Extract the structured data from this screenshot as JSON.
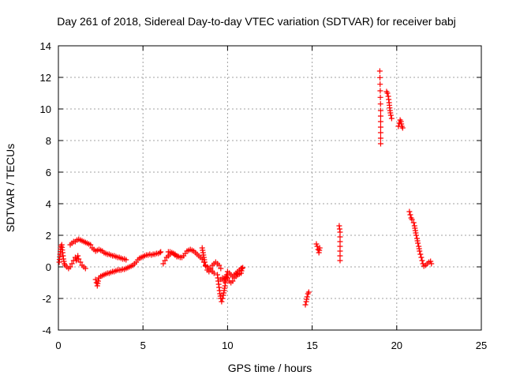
{
  "chart_data": {
    "type": "scatter",
    "title": "Day 261 of 2018, Sidereal Day-to-day VTEC variation (SDTVAR) for receiver babj",
    "xlabel": "GPS time / hours",
    "ylabel": "SDTVAR / TECUs",
    "xlim": [
      0,
      25
    ],
    "ylim": [
      -4,
      14
    ],
    "xticks": [
      0,
      5,
      10,
      15,
      20,
      25
    ],
    "yticks": [
      -4,
      -2,
      0,
      2,
      4,
      6,
      8,
      10,
      12,
      14
    ],
    "grid": true,
    "marker": "+",
    "color": "#ff0000",
    "series": [
      {
        "name": "babj",
        "tracks": [
          [
            [
              0.05,
              0.3
            ],
            [
              0.1,
              0.8
            ],
            [
              0.15,
              1.3
            ],
            [
              0.2,
              1.4
            ],
            [
              0.25,
              0.9
            ],
            [
              0.3,
              0.5
            ],
            [
              0.35,
              0.2
            ],
            [
              0.4,
              0.1
            ],
            [
              0.5,
              0.0
            ],
            [
              0.6,
              -0.1
            ],
            [
              0.7,
              0.0
            ],
            [
              0.8,
              0.2
            ],
            [
              0.9,
              0.4
            ],
            [
              1.0,
              0.6
            ],
            [
              1.05,
              0.4
            ],
            [
              1.1,
              0.5
            ],
            [
              1.15,
              0.7
            ],
            [
              1.2,
              0.5
            ],
            [
              1.3,
              0.3
            ],
            [
              1.4,
              0.1
            ],
            [
              1.5,
              0.0
            ],
            [
              1.6,
              -0.1
            ]
          ],
          [
            [
              0.7,
              1.4
            ],
            [
              0.8,
              1.5
            ],
            [
              0.9,
              1.6
            ],
            [
              1.0,
              1.6
            ],
            [
              1.1,
              1.7
            ],
            [
              1.2,
              1.75
            ],
            [
              1.3,
              1.7
            ],
            [
              1.4,
              1.65
            ],
            [
              1.5,
              1.6
            ],
            [
              1.6,
              1.55
            ],
            [
              1.7,
              1.5
            ],
            [
              1.8,
              1.45
            ],
            [
              1.9,
              1.4
            ],
            [
              2.0,
              1.2
            ],
            [
              2.1,
              1.1
            ],
            [
              2.2,
              1.0
            ],
            [
              2.3,
              1.05
            ],
            [
              2.4,
              1.1
            ],
            [
              2.5,
              1.05
            ],
            [
              2.6,
              1.0
            ],
            [
              2.7,
              0.9
            ],
            [
              2.8,
              0.85
            ],
            [
              2.9,
              0.8
            ],
            [
              3.0,
              0.8
            ],
            [
              3.1,
              0.75
            ],
            [
              3.2,
              0.7
            ],
            [
              3.3,
              0.7
            ],
            [
              3.4,
              0.65
            ],
            [
              3.5,
              0.6
            ],
            [
              3.6,
              0.6
            ],
            [
              3.7,
              0.55
            ],
            [
              3.8,
              0.5
            ],
            [
              3.9,
              0.5
            ],
            [
              4.0,
              0.45
            ]
          ],
          [
            [
              2.2,
              -0.8
            ],
            [
              2.25,
              -1.0
            ],
            [
              2.3,
              -1.2
            ],
            [
              2.35,
              -0.9
            ],
            [
              2.4,
              -0.7
            ],
            [
              2.5,
              -0.6
            ],
            [
              2.6,
              -0.55
            ],
            [
              2.7,
              -0.5
            ],
            [
              2.8,
              -0.45
            ],
            [
              2.9,
              -0.4
            ],
            [
              3.0,
              -0.4
            ],
            [
              3.1,
              -0.35
            ],
            [
              3.2,
              -0.3
            ],
            [
              3.3,
              -0.3
            ],
            [
              3.4,
              -0.25
            ],
            [
              3.5,
              -0.2
            ],
            [
              3.6,
              -0.2
            ],
            [
              3.7,
              -0.2
            ],
            [
              3.8,
              -0.15
            ],
            [
              3.9,
              -0.15
            ],
            [
              4.0,
              -0.1
            ],
            [
              4.1,
              -0.05
            ],
            [
              4.2,
              0.0
            ],
            [
              4.3,
              0.05
            ],
            [
              4.4,
              0.1
            ],
            [
              4.5,
              0.2
            ],
            [
              4.6,
              0.3
            ],
            [
              4.7,
              0.45
            ],
            [
              4.8,
              0.55
            ],
            [
              4.9,
              0.6
            ],
            [
              5.0,
              0.65
            ],
            [
              5.1,
              0.7
            ],
            [
              5.2,
              0.75
            ],
            [
              5.3,
              0.75
            ],
            [
              5.4,
              0.8
            ],
            [
              5.5,
              0.75
            ],
            [
              5.6,
              0.8
            ],
            [
              5.7,
              0.8
            ],
            [
              5.8,
              0.85
            ],
            [
              5.9,
              0.85
            ],
            [
              6.0,
              0.9
            ],
            [
              6.05,
              0.95
            ]
          ],
          [
            [
              6.2,
              0.2
            ],
            [
              6.3,
              0.4
            ],
            [
              6.4,
              0.6
            ],
            [
              6.5,
              0.7
            ],
            [
              6.6,
              0.8
            ],
            [
              6.7,
              0.9
            ],
            [
              6.8,
              0.85
            ],
            [
              6.9,
              0.8
            ],
            [
              7.0,
              0.7
            ],
            [
              7.1,
              0.65
            ],
            [
              7.2,
              0.6
            ],
            [
              7.3,
              0.6
            ],
            [
              7.4,
              0.7
            ],
            [
              7.5,
              0.85
            ],
            [
              7.6,
              1.0
            ],
            [
              7.7,
              1.05
            ],
            [
              7.8,
              1.1
            ],
            [
              7.9,
              1.05
            ],
            [
              8.0,
              1.0
            ],
            [
              8.1,
              0.9
            ],
            [
              8.2,
              0.8
            ],
            [
              8.3,
              0.7
            ],
            [
              8.4,
              0.6
            ],
            [
              8.5,
              0.5
            ],
            [
              8.6,
              0.3
            ],
            [
              8.7,
              0.1
            ],
            [
              8.8,
              0.0
            ],
            [
              8.9,
              -0.1
            ],
            [
              9.0,
              -0.2
            ],
            [
              9.1,
              -0.3
            ],
            [
              9.2,
              -0.4
            ]
          ],
          [
            [
              6.5,
              0.95
            ],
            [
              6.6,
              0.95
            ],
            [
              6.7,
              0.9
            ],
            [
              6.8,
              0.85
            ],
            [
              6.9,
              0.75
            ],
            [
              7.0,
              0.65
            ]
          ],
          [
            [
              8.5,
              1.2
            ],
            [
              8.55,
              0.9
            ],
            [
              8.6,
              0.6
            ],
            [
              8.65,
              0.3
            ],
            [
              8.7,
              0.05
            ],
            [
              8.8,
              -0.2
            ],
            [
              8.9,
              -0.3
            ],
            [
              9.0,
              -0.1
            ],
            [
              9.1,
              0.1
            ],
            [
              9.2,
              0.2
            ],
            [
              9.3,
              0.3
            ],
            [
              9.4,
              0.2
            ],
            [
              9.5,
              0.1
            ],
            [
              9.6,
              -0.1
            ]
          ],
          [
            [
              9.4,
              -0.5
            ],
            [
              9.45,
              -0.9
            ],
            [
              9.5,
              -1.3
            ],
            [
              9.55,
              -1.7
            ],
            [
              9.6,
              -2.0
            ],
            [
              9.65,
              -2.2
            ],
            [
              9.7,
              -2.0
            ],
            [
              9.75,
              -1.8
            ],
            [
              9.8,
              -1.5
            ],
            [
              9.85,
              -1.2
            ],
            [
              9.9,
              -0.8
            ],
            [
              9.95,
              -0.5
            ],
            [
              10.0,
              -0.3
            ],
            [
              10.1,
              -0.4
            ],
            [
              10.2,
              -0.5
            ],
            [
              10.3,
              -0.6
            ],
            [
              10.4,
              -0.5
            ],
            [
              10.5,
              -0.4
            ],
            [
              10.6,
              -0.5
            ],
            [
              10.7,
              -0.45
            ],
            [
              10.8,
              -0.4
            ],
            [
              10.85,
              -0.1
            ]
          ],
          [
            [
              9.6,
              -0.8
            ],
            [
              9.7,
              -0.7
            ],
            [
              9.8,
              -0.9
            ],
            [
              9.9,
              -0.6
            ],
            [
              10.0,
              -0.7
            ],
            [
              10.1,
              -0.9
            ],
            [
              10.2,
              -1.0
            ],
            [
              10.3,
              -0.9
            ],
            [
              10.4,
              -0.7
            ],
            [
              10.5,
              -0.6
            ],
            [
              10.6,
              -0.3
            ],
            [
              10.7,
              -0.2
            ],
            [
              10.8,
              -0.1
            ],
            [
              10.9,
              -0.05
            ]
          ],
          [
            [
              14.6,
              -2.4
            ],
            [
              14.65,
              -2.2
            ],
            [
              14.7,
              -1.9
            ],
            [
              14.75,
              -1.7
            ],
            [
              14.8,
              -1.6
            ]
          ],
          [
            [
              15.25,
              1.45
            ],
            [
              15.3,
              1.3
            ],
            [
              15.35,
              1.1
            ],
            [
              15.4,
              0.9
            ],
            [
              15.45,
              1.2
            ]
          ],
          [
            [
              16.6,
              2.6
            ],
            [
              16.65,
              2.2
            ],
            [
              16.65,
              0.4
            ]
          ],
          [
            [
              19.0,
              12.4
            ],
            [
              19.05,
              9.9
            ],
            [
              19.05,
              7.8
            ]
          ],
          [
            [
              19.4,
              11.1
            ],
            [
              19.45,
              11.0
            ],
            [
              19.5,
              10.8
            ],
            [
              19.55,
              10.4
            ],
            [
              19.6,
              9.9
            ],
            [
              19.65,
              9.6
            ],
            [
              19.7,
              9.4
            ]
          ],
          [
            [
              20.1,
              8.9
            ],
            [
              20.15,
              9.1
            ],
            [
              20.2,
              9.3
            ],
            [
              20.25,
              9.2
            ],
            [
              20.3,
              8.9
            ],
            [
              20.35,
              8.8
            ]
          ],
          [
            [
              20.75,
              3.5
            ],
            [
              20.8,
              3.3
            ],
            [
              20.85,
              3.1
            ],
            [
              20.9,
              3.0
            ],
            [
              21.0,
              2.8
            ],
            [
              21.05,
              2.6
            ],
            [
              21.1,
              2.3
            ],
            [
              21.15,
              2.0
            ],
            [
              21.2,
              1.8
            ],
            [
              21.25,
              1.5
            ],
            [
              21.3,
              1.3
            ],
            [
              21.35,
              1.0
            ],
            [
              21.4,
              0.8
            ],
            [
              21.45,
              0.6
            ],
            [
              21.5,
              0.4
            ],
            [
              21.55,
              0.2
            ],
            [
              21.6,
              0.05
            ],
            [
              21.7,
              0.1
            ],
            [
              21.8,
              0.2
            ],
            [
              21.9,
              0.3
            ],
            [
              22.0,
              0.35
            ],
            [
              22.05,
              0.2
            ]
          ]
        ]
      }
    ]
  }
}
